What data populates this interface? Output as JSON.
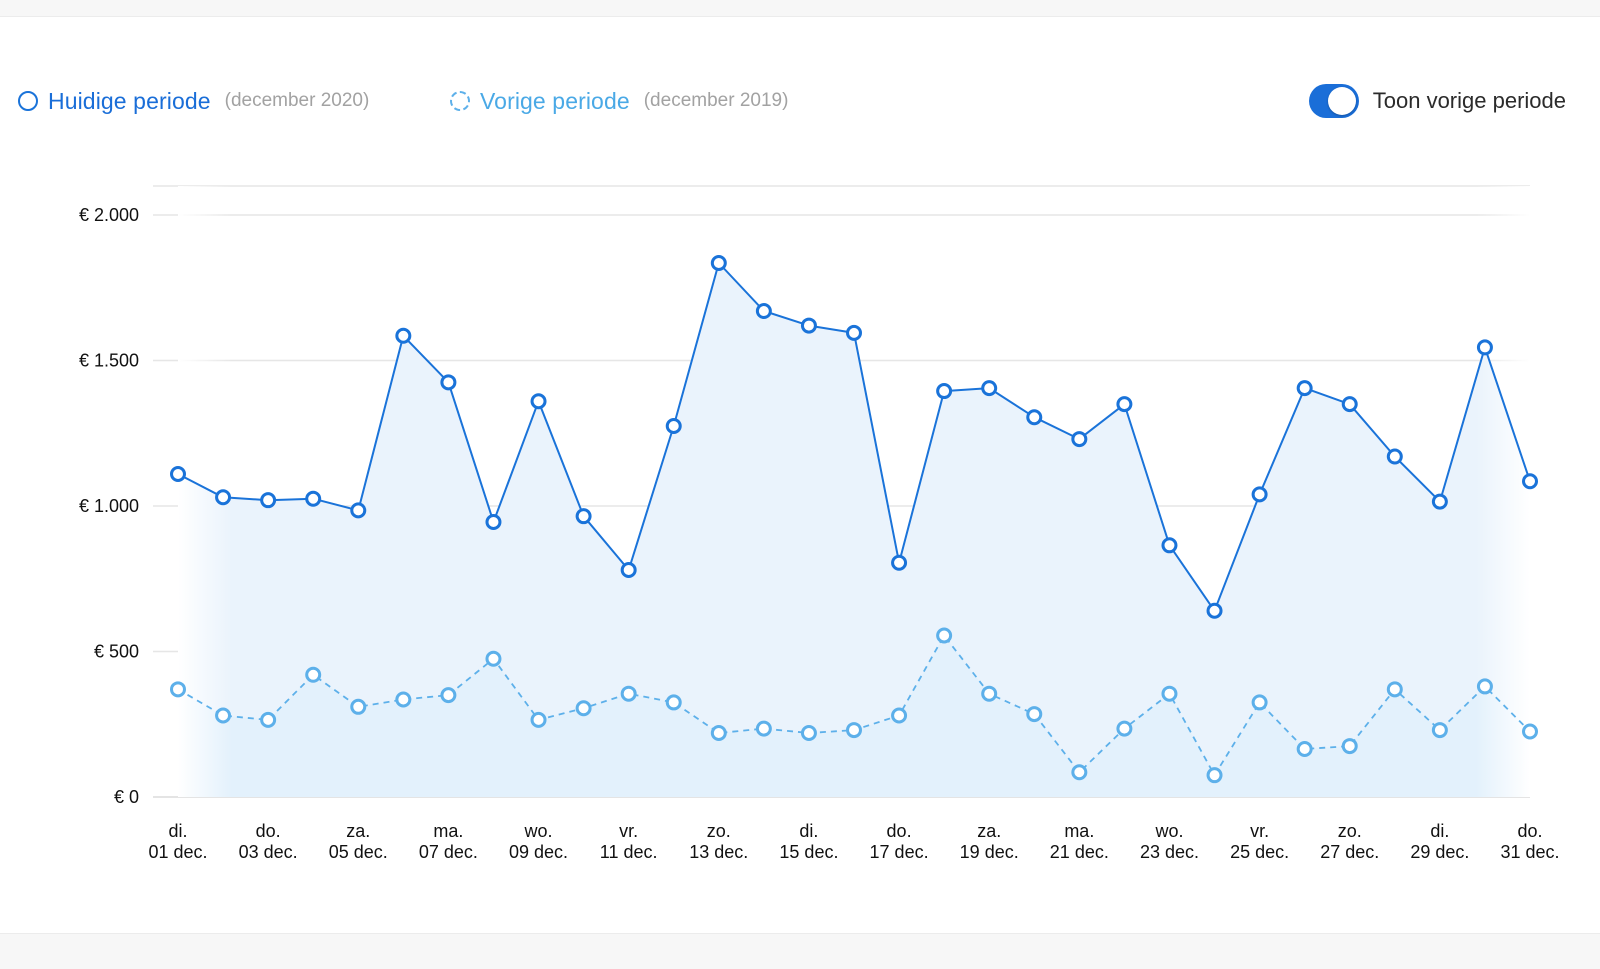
{
  "legend": {
    "current_label": "Huidige periode",
    "current_period": "(december 2020)",
    "previous_label": "Vorige periode",
    "previous_period": "(december 2019)"
  },
  "toggle": {
    "label": "Toon vorige periode",
    "on": true
  },
  "colors": {
    "current": "#1a73d9",
    "previous": "#5db0ea",
    "current_fill": "#eaf3fc",
    "previous_fill": "#e3f1fc",
    "grid": "#e6e6e6"
  },
  "chart_data": {
    "type": "line",
    "x": [
      "01 dec.",
      "02 dec.",
      "03 dec.",
      "04 dec.",
      "05 dec.",
      "06 dec.",
      "07 dec.",
      "08 dec.",
      "09 dec.",
      "10 dec.",
      "11 dec.",
      "12 dec.",
      "13 dec.",
      "14 dec.",
      "15 dec.",
      "16 dec.",
      "17 dec.",
      "18 dec.",
      "19 dec.",
      "20 dec.",
      "21 dec.",
      "22 dec.",
      "23 dec.",
      "24 dec.",
      "25 dec.",
      "26 dec.",
      "27 dec.",
      "28 dec.",
      "29 dec.",
      "30 dec.",
      "31 dec."
    ],
    "x_tick_labels": [
      {
        "index": 0,
        "day": "di.",
        "date": "01 dec."
      },
      {
        "index": 2,
        "day": "do.",
        "date": "03 dec."
      },
      {
        "index": 4,
        "day": "za.",
        "date": "05 dec."
      },
      {
        "index": 6,
        "day": "ma.",
        "date": "07 dec."
      },
      {
        "index": 8,
        "day": "wo.",
        "date": "09 dec."
      },
      {
        "index": 10,
        "day": "vr.",
        "date": "11 dec."
      },
      {
        "index": 12,
        "day": "zo.",
        "date": "13 dec."
      },
      {
        "index": 14,
        "day": "di.",
        "date": "15 dec."
      },
      {
        "index": 16,
        "day": "do.",
        "date": "17 dec."
      },
      {
        "index": 18,
        "day": "za.",
        "date": "19 dec."
      },
      {
        "index": 20,
        "day": "ma.",
        "date": "21 dec."
      },
      {
        "index": 22,
        "day": "wo.",
        "date": "23 dec."
      },
      {
        "index": 24,
        "day": "vr.",
        "date": "25 dec."
      },
      {
        "index": 26,
        "day": "zo.",
        "date": "27 dec."
      },
      {
        "index": 28,
        "day": "di.",
        "date": "29 dec."
      },
      {
        "index": 30,
        "day": "do.",
        "date": "31 dec."
      }
    ],
    "series": [
      {
        "name": "Huidige periode",
        "values": [
          1110,
          1030,
          1020,
          1025,
          985,
          1585,
          1425,
          945,
          1360,
          965,
          780,
          1275,
          1835,
          1670,
          1620,
          1595,
          805,
          1395,
          1405,
          1305,
          1230,
          1350,
          865,
          640,
          1040,
          1405,
          1350,
          1170,
          1015,
          1545,
          1085
        ]
      },
      {
        "name": "Vorige periode",
        "values": [
          370,
          280,
          265,
          420,
          310,
          335,
          350,
          475,
          265,
          305,
          355,
          325,
          220,
          235,
          220,
          230,
          280,
          555,
          355,
          285,
          85,
          235,
          355,
          75,
          325,
          165,
          175,
          370,
          230,
          380,
          225
        ]
      }
    ],
    "y_ticks": [
      {
        "value": 0,
        "label": "€ 0"
      },
      {
        "value": 500,
        "label": "€ 500"
      },
      {
        "value": 1000,
        "label": "€ 1.000"
      },
      {
        "value": 1500,
        "label": "€ 1.500"
      },
      {
        "value": 2000,
        "label": "€ 2.000"
      }
    ],
    "ylim": [
      0,
      2000
    ],
    "grid": true,
    "legend_position": "top-left"
  }
}
